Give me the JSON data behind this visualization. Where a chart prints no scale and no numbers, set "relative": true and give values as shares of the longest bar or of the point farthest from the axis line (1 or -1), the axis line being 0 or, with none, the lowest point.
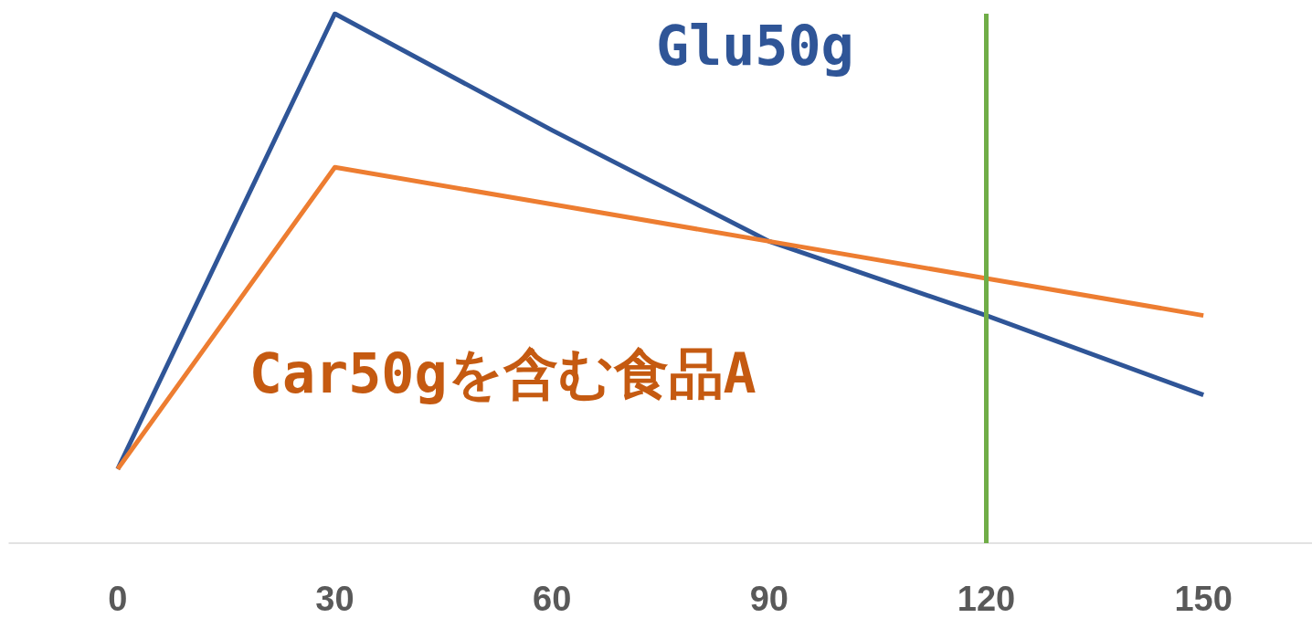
{
  "chart_data": {
    "type": "line",
    "relative": true,
    "categories": [
      "0",
      "30",
      "60",
      "90",
      "120",
      "150"
    ],
    "series": [
      {
        "name": "Glu50g",
        "color": "#2f5597",
        "values": [
          0.14,
          1,
          0.78,
          0.57,
          0.43,
          0.28
        ]
      },
      {
        "name": "Car50gを含む食品A",
        "color": "#ed7d31",
        "values": [
          0.14,
          0.71,
          0.64,
          0.57,
          0.5,
          0.43
        ]
      }
    ],
    "ref_lines": [
      {
        "axis": "x",
        "value": "120",
        "color": "#70ad47",
        "line_style": "solid"
      }
    ],
    "marker": "none",
    "line_style": "solid",
    "grid": false,
    "legend": false
  }
}
